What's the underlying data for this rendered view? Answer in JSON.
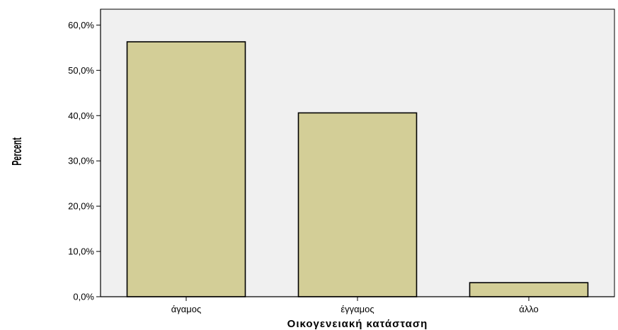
{
  "chart_data": {
    "type": "bar",
    "categories": [
      "άγαμος",
      "έγγαμος",
      "άλλο"
    ],
    "values": [
      56.3,
      40.6,
      3.1
    ],
    "title": "",
    "xlabel": "Οικογενειακή κατάσταση",
    "ylabel": "Percent",
    "ylim": [
      0,
      63.5
    ],
    "yticks": [
      0,
      10,
      20,
      30,
      40,
      50,
      60
    ],
    "ytick_labels": [
      "0,0%",
      "10,0%",
      "20,0%",
      "30,0%",
      "40,0%",
      "50,0%",
      "60,0%"
    ],
    "grid": false,
    "legend": "none",
    "bar_color": "#d3ce97",
    "bar_edge_color": "#000000",
    "plot_background": "#f0f0f0"
  }
}
